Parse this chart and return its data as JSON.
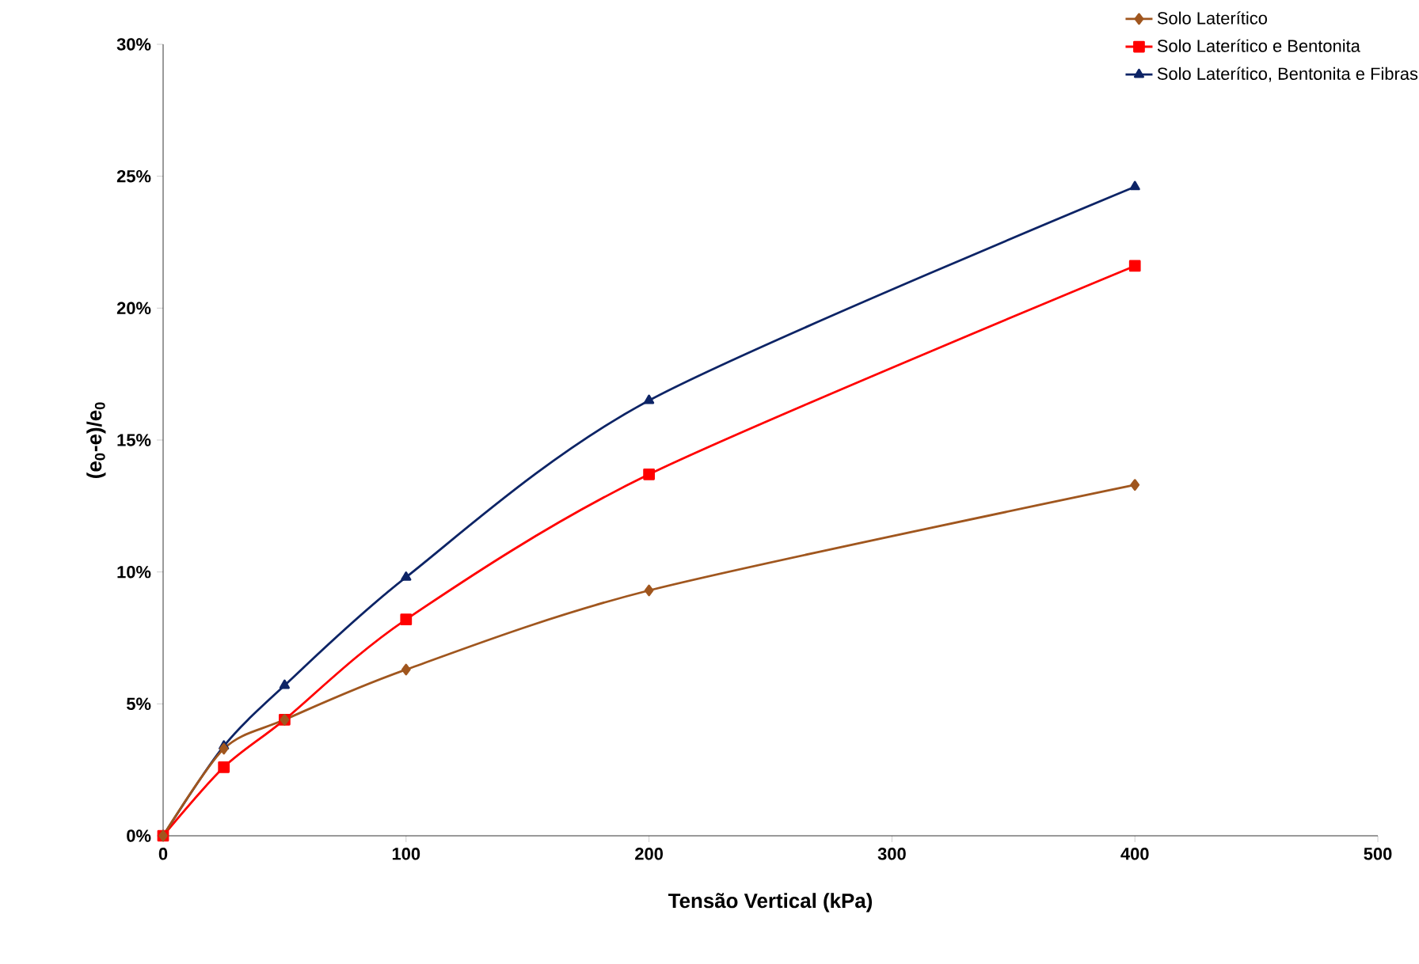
{
  "chart_data": {
    "type": "line",
    "xlabel": "Tensão Vertical (kPa)",
    "ylabel": "(e$_{0}$-e)/e$_{0}$",
    "xlim": [
      0,
      500
    ],
    "xticks": [
      0,
      100,
      200,
      300,
      400,
      500
    ],
    "ylim": [
      0,
      30
    ],
    "yticks": [
      {
        "value": 0,
        "label": "0%"
      },
      {
        "value": 5,
        "label": "5%"
      },
      {
        "value": 10,
        "label": "10%"
      },
      {
        "value": 15,
        "label": "15%"
      },
      {
        "value": 20,
        "label": "20%"
      },
      {
        "value": 25,
        "label": "25%"
      },
      {
        "value": 30,
        "label": "30%"
      }
    ],
    "legend": "top right",
    "line_style": "solid",
    "series": [
      {
        "name": "Solo Laterítico",
        "color": "#a0561e",
        "marker": "diamond",
        "x": [
          0,
          25,
          50,
          100,
          200,
          400
        ],
        "values": [
          0,
          3.3,
          4.4,
          6.3,
          9.3,
          13.3
        ]
      },
      {
        "name": "Solo Laterítico e Bentonita",
        "color": "#ff0000",
        "marker": "square",
        "x": [
          0,
          25,
          50,
          100,
          200,
          400
        ],
        "values": [
          0,
          2.6,
          4.4,
          8.2,
          13.7,
          21.6
        ]
      },
      {
        "name": "Solo Laterítico, Bentonita e Fibras",
        "color": "#0d2466",
        "marker": "triangle",
        "x": [
          0,
          25,
          50,
          100,
          200,
          400
        ],
        "values": [
          0,
          3.4,
          5.7,
          9.8,
          16.5,
          24.6
        ]
      }
    ]
  }
}
